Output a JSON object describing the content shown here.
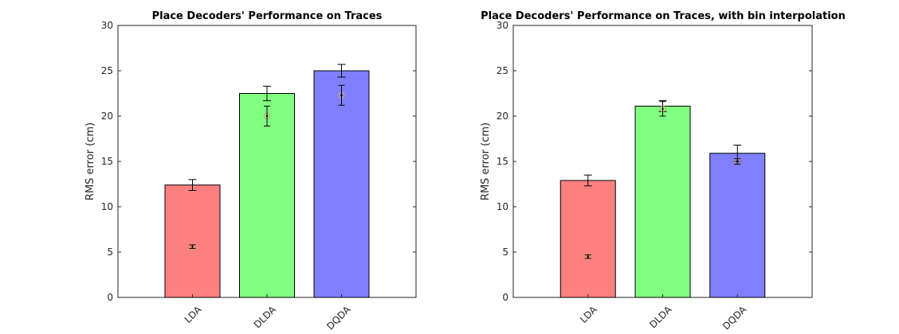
{
  "chart_data": [
    {
      "type": "bar",
      "title": "Place Decoders' Performance on Traces",
      "xlabel": "",
      "ylabel": "RMS error (cm)",
      "ylim": [
        0,
        30
      ],
      "yticks": [
        0,
        5,
        10,
        15,
        20,
        25,
        30
      ],
      "grid": false,
      "categories": [
        "LDA",
        "DLDA",
        "DQDA"
      ],
      "values": [
        12.4,
        22.5,
        25.0
      ],
      "errors": [
        0.6,
        0.8,
        0.7
      ],
      "bar_colors": [
        "#ff8080",
        "#80ff80",
        "#8080ff"
      ],
      "secondary_points": {
        "values": [
          5.6,
          20.0,
          22.3
        ],
        "errors": [
          0.2,
          1.1,
          1.1
        ],
        "marker_color": "#c8a07a"
      }
    },
    {
      "type": "bar",
      "title": "Place Decoders' Performance on Traces, with bin interpolation",
      "xlabel": "",
      "ylabel": "RMS error (cm)",
      "ylim": [
        0,
        30
      ],
      "yticks": [
        0,
        5,
        10,
        15,
        20,
        25,
        30
      ],
      "grid": false,
      "categories": [
        "LDA",
        "DLDA",
        "DQDA"
      ],
      "values": [
        12.9,
        21.1,
        15.9
      ],
      "errors": [
        0.6,
        0.6,
        0.9
      ],
      "bar_colors": [
        "#ff8080",
        "#80ff80",
        "#8080ff"
      ],
      "secondary_points": {
        "values": [
          4.5,
          20.8,
          15.0
        ],
        "errors": [
          0.2,
          0.8,
          0.3
        ],
        "marker_color": "#c8a07a"
      }
    }
  ]
}
